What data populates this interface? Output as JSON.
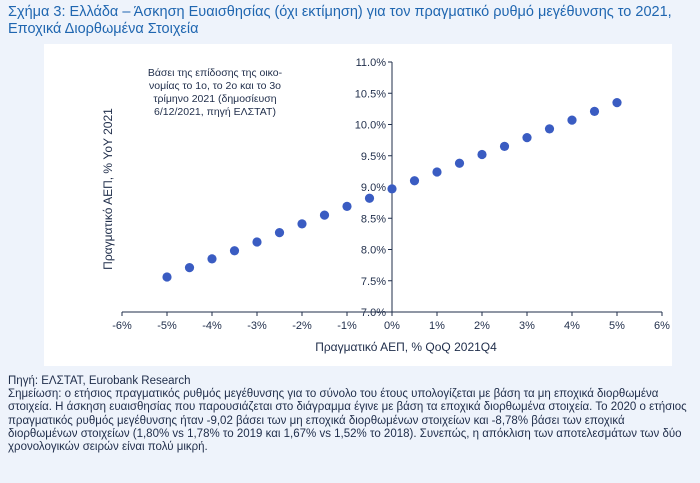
{
  "figure": {
    "title": "Σχήμα 3: Ελλάδα – Άσκηση Ευαισθησίας (όχι εκτίμηση) για τον πραγματικό ρυθμό μεγέθυνσης το 2021, Εποχικά Διορθωμένα Στοιχεία"
  },
  "colors": {
    "title": "#1f66b0",
    "marker": "#3a5cc2",
    "axis": "#1f2d4a",
    "background": "#eef3fb"
  },
  "chart_data": {
    "type": "scatter",
    "xlabel": "Πραγματικό ΑΕΠ, % QoQ 2021Q4",
    "ylabel": "Πραγματικό ΑΕΠ, % YoY 2021",
    "xlim": [
      -6,
      6
    ],
    "ylim": [
      7.0,
      11.0
    ],
    "x_ticks": [
      "-6%",
      "-5%",
      "-4%",
      "-3%",
      "-2%",
      "-1%",
      "0%",
      "1%",
      "2%",
      "3%",
      "4%",
      "5%",
      "6%"
    ],
    "y_ticks": [
      "7.0%",
      "7.5%",
      "8.0%",
      "8.5%",
      "9.0%",
      "9.5%",
      "10.0%",
      "10.5%",
      "11.0%"
    ],
    "annotation_lines": [
      "Βάσει της επίδοσης της οικο-",
      "νομίας το 1ο, το 2ο και το 3ο",
      "τρίμηνο 2021 (δημοσίευση",
      "6/12/2021, πηγή ΕΛΣΤΑΤ)"
    ],
    "x": [
      -5.0,
      -4.5,
      -4.0,
      -3.5,
      -3.0,
      -2.5,
      -2.0,
      -1.5,
      -1.0,
      -0.5,
      0.0,
      0.5,
      1.0,
      1.5,
      2.0,
      2.5,
      3.0,
      3.5,
      4.0,
      4.5,
      5.0
    ],
    "y": [
      7.56,
      7.71,
      7.85,
      7.98,
      8.12,
      8.27,
      8.41,
      8.55,
      8.69,
      8.82,
      8.97,
      9.1,
      9.24,
      9.38,
      9.52,
      9.65,
      9.79,
      9.93,
      10.07,
      10.21,
      10.35
    ]
  },
  "footer": {
    "source": "Πηγή: ΕΛΣΤΑΤ, Eurobank Research",
    "note": "Σημείωση: ο ετήσιος πραγματικός ρυθμός μεγέθυνσης για το σύνολο του έτους υπολογίζεται με βάση τα μη εποχικά διορθωμένα στοιχεία. Η άσκηση ευαισθησίας που παρουσιάζεται στο διάγραμμα έγινε με βάση τα εποχικά διορθωμένα στοιχεία. Το 2020 ο ετήσιος πραγματικός ρυθμός μεγέθυνσης ήταν -9,02 βάσει των μη εποχικά διορθωμένων στοιχείων και -8,78% βάσει των εποχικά διορθωμένων στοιχείων (1,80% vs 1,78% το 2019 και 1,67% vs 1,52% το 2018). Συνεπώς, η απόκλιση των αποτελεσμάτων των δύο χρονολογικών σειρών είναι πολύ μικρή."
  }
}
